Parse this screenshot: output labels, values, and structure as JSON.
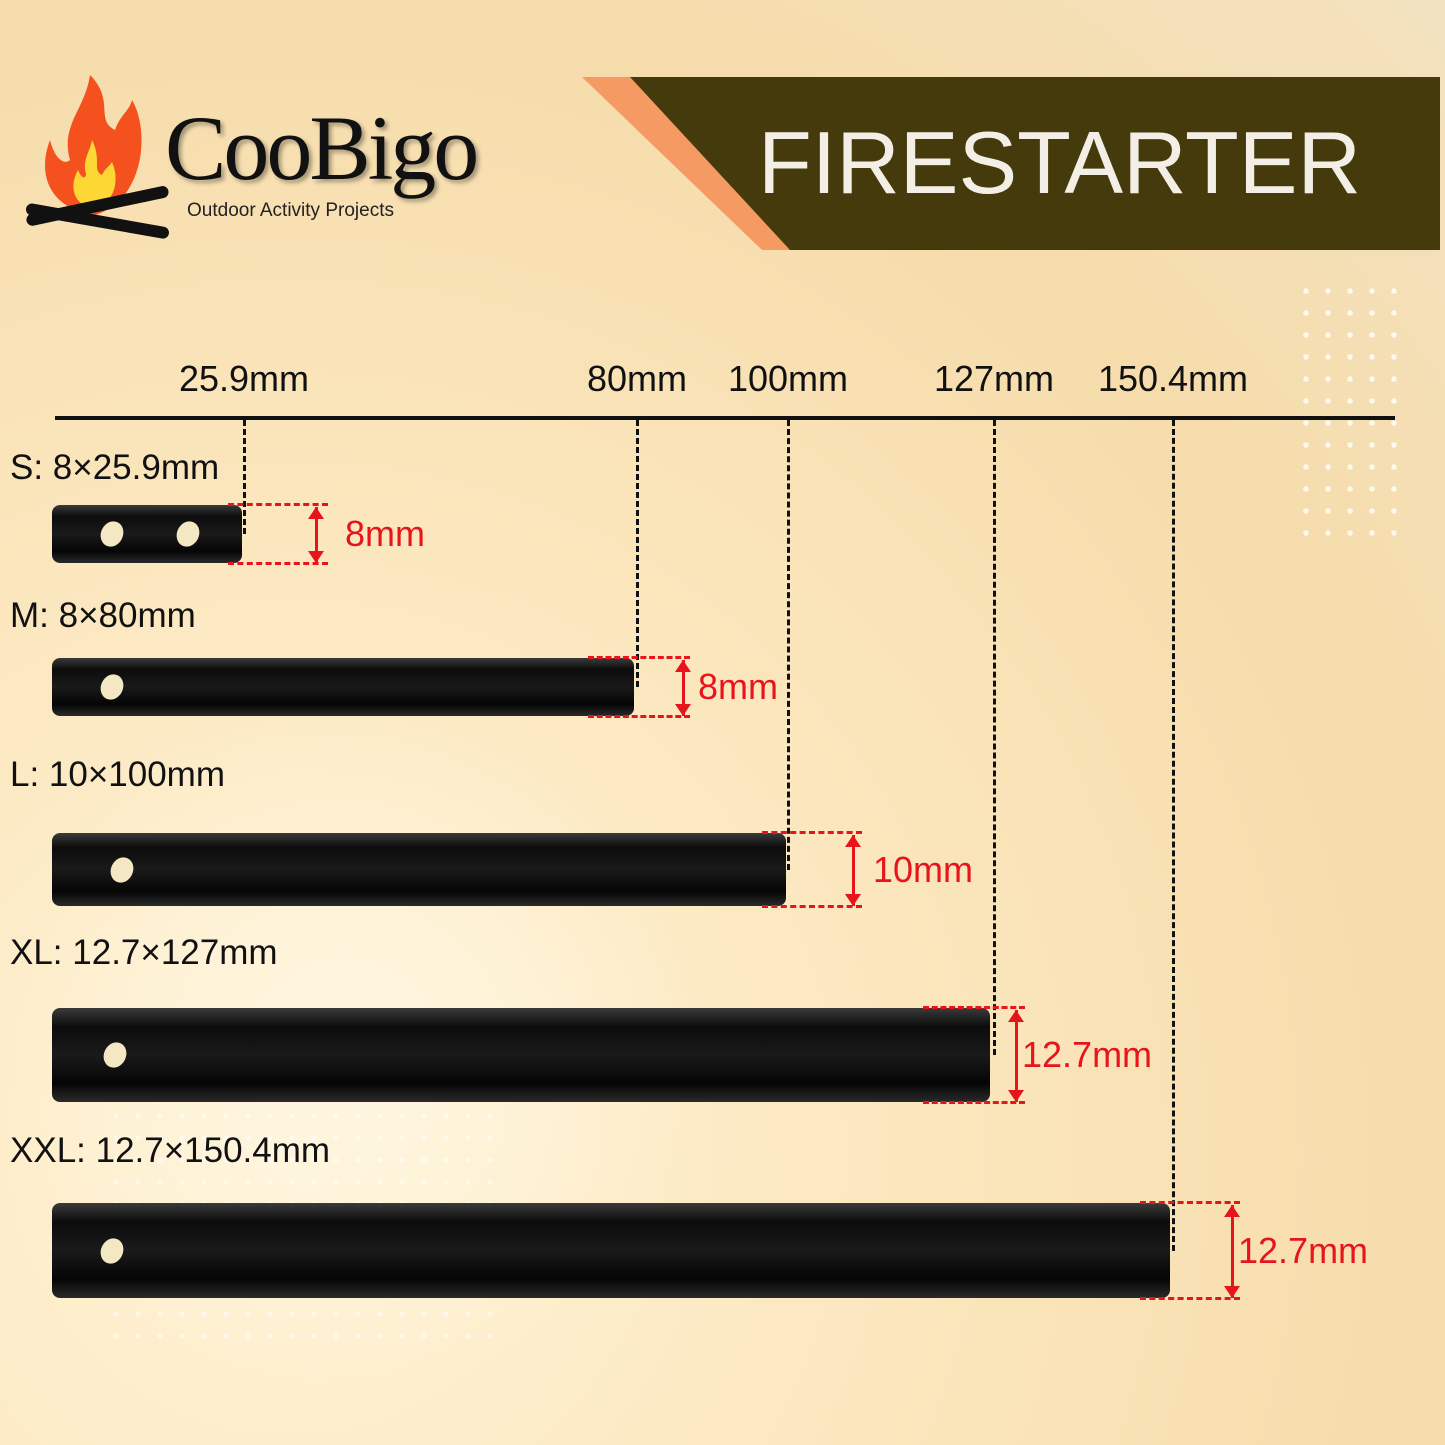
{
  "brand": {
    "name": "CooBigo",
    "tagline": "Outdoor Activity Projects"
  },
  "banner": {
    "title": "FIRESTARTER",
    "colors": {
      "banner": "#453a0c",
      "stripe": "#f59a62"
    }
  },
  "scale_labels": [
    "25.9mm",
    "80mm",
    "100mm",
    "127mm",
    "150.4mm"
  ],
  "accent_color": "#e8141b",
  "rods": [
    {
      "label": "S: 8×25.9mm",
      "diameter": "8mm",
      "diameter_mm": 8,
      "length_mm": 25.9,
      "holes": 2
    },
    {
      "label": "M: 8×80mm",
      "diameter": "8mm",
      "diameter_mm": 8,
      "length_mm": 80,
      "holes": 1
    },
    {
      "label": "L: 10×100mm",
      "diameter": "10mm",
      "diameter_mm": 10,
      "length_mm": 100,
      "holes": 1
    },
    {
      "label": "XL: 12.7×127mm",
      "diameter": "12.7mm",
      "diameter_mm": 12.7,
      "length_mm": 127,
      "holes": 1
    },
    {
      "label": "XXL: 12.7×150.4mm",
      "diameter": "12.7mm",
      "diameter_mm": 12.7,
      "length_mm": 150.4,
      "holes": 1
    }
  ]
}
